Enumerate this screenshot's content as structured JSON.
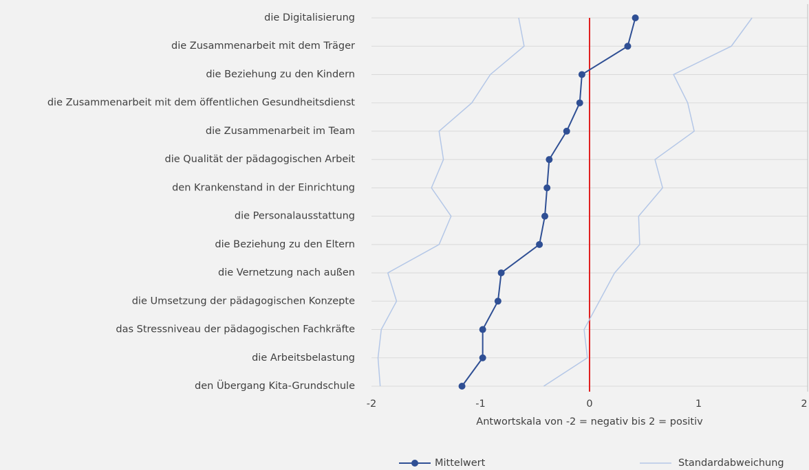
{
  "chart_data": {
    "type": "line",
    "orientation": "horizontal",
    "xlabel": "Antwortskala von -2 = negativ bis 2 = positiv",
    "categories": [
      "die Digitalisierung",
      "die Zusammenarbeit mit dem Träger",
      "die Beziehung zu den Kindern",
      "die Zusammenarbeit mit dem öffentlichen Gesundheitsdienst",
      "die Zusammenarbeit im Team",
      "die Qualität der pädagogischen Arbeit",
      "den Krankenstand in der Einrichtung",
      "die Personalausstattung",
      "die Beziehung zu den Eltern",
      "die Vernetzung nach außen",
      "die Umsetzung der pädagogischen Konzepte",
      "das Stressniveau der pädagogischen Fachkräfte",
      "die Arbeitsbelastung",
      "den Übergang Kita-Grundschule"
    ],
    "series": [
      {
        "name": "Mittelwert",
        "color": "#2f4f94",
        "values": [
          0.42,
          0.35,
          -0.07,
          -0.09,
          -0.21,
          -0.37,
          -0.39,
          -0.41,
          -0.46,
          -0.81,
          -0.84,
          -0.98,
          -0.98,
          -1.17
        ]
      },
      {
        "name": "Standardabweichung",
        "color": "#b4c7e7",
        "values": [
          1.07,
          0.95,
          0.84,
          0.99,
          1.17,
          0.97,
          1.06,
          0.86,
          0.92,
          1.04,
          0.93,
          0.93,
          0.96,
          0.75
        ]
      }
    ],
    "xlim": [
      -2,
      2
    ],
    "xticks": [
      -2,
      -1,
      0,
      1,
      2
    ],
    "reference_line": {
      "value": 0,
      "color": "#e02020"
    },
    "grid": true,
    "legend": "bottom"
  }
}
